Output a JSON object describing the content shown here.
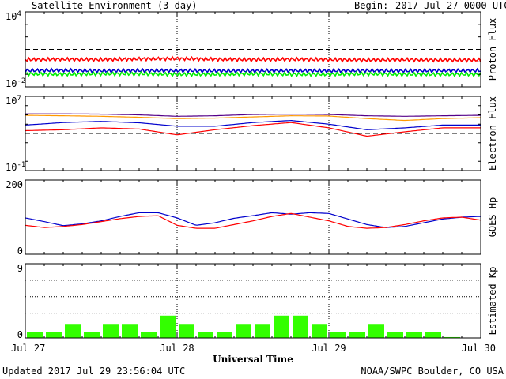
{
  "header": {
    "title": "Satellite Environment (3 day)",
    "begin_label": "Begin:",
    "begin_value": "2017 Jul 27 0000 UTC"
  },
  "footer": {
    "updated": "Updated 2017 Jul 29 23:56:04 UTC",
    "credit": "NOAA/SWPC Boulder, CO USA"
  },
  "colors": {
    "red": "#ff0000",
    "blue": "#0000cc",
    "green": "#00ee00",
    "orange": "#ff9900",
    "purple": "#550088",
    "bar": "#33ff00"
  },
  "chart_data": [
    {
      "type": "line",
      "ylabel": "Proton Flux",
      "yscale": "log",
      "ylim": [
        0.01,
        10000
      ],
      "yticks": [
        {
          "base": "10",
          "exp": "4"
        },
        {
          "base": "10",
          "exp": "-2"
        }
      ],
      "threshold": 10,
      "x": [
        0,
        6,
        12,
        18,
        24,
        30,
        36,
        42,
        48,
        54,
        60,
        66,
        72
      ],
      "series": [
        {
          "color": "#ff0000",
          "values": [
            1.5,
            1.6,
            1.5,
            1.7,
            1.8,
            1.6,
            1.5,
            1.6,
            1.5,
            1.4,
            1.5,
            1.4,
            1.4
          ]
        },
        {
          "color": "#0000cc",
          "values": [
            0.2,
            0.21,
            0.19,
            0.2,
            0.2,
            0.19,
            0.19,
            0.2,
            0.19,
            0.2,
            0.19,
            0.2,
            0.2
          ]
        },
        {
          "color": "#00ee00",
          "values": [
            0.11,
            0.1,
            0.11,
            0.11,
            0.1,
            0.1,
            0.11,
            0.1,
            0.1,
            0.11,
            0.1,
            0.1,
            0.1
          ]
        }
      ]
    },
    {
      "type": "line",
      "ylabel": "Electron Flux",
      "yscale": "log",
      "ylim": [
        0.1,
        10000000
      ],
      "yticks": [
        {
          "base": "10",
          "exp": "7"
        },
        {
          "base": "10",
          "exp": "-1"
        }
      ],
      "threshold": 1000,
      "x": [
        0,
        6,
        12,
        18,
        24,
        30,
        36,
        42,
        48,
        54,
        60,
        66,
        72
      ],
      "series": [
        {
          "color": "#ff9900",
          "values": [
            90000,
            80000,
            70000,
            55000,
            40000,
            45000,
            60000,
            80000,
            75000,
            40000,
            25000,
            40000,
            50000
          ]
        },
        {
          "color": "#550088",
          "values": [
            130000,
            130000,
            120000,
            100000,
            70000,
            80000,
            110000,
            120000,
            110000,
            80000,
            70000,
            80000,
            90000
          ]
        },
        {
          "color": "#0000cc",
          "values": [
            8000,
            15000,
            20000,
            14000,
            6000,
            6000,
            15000,
            25000,
            10000,
            2500,
            4000,
            8000,
            8000
          ]
        },
        {
          "color": "#ff0000",
          "values": [
            2000,
            2500,
            4000,
            3000,
            700,
            2500,
            7000,
            15000,
            4000,
            500,
            1500,
            4000,
            4000
          ]
        }
      ]
    },
    {
      "type": "line",
      "ylabel": "GOES Hp",
      "yscale": "linear",
      "ylim": [
        0,
        200
      ],
      "yticks": [
        {
          "base": "200",
          "exp": ""
        },
        {
          "base": "0",
          "exp": ""
        }
      ],
      "x": [
        0,
        3,
        6,
        9,
        12,
        15,
        18,
        21,
        24,
        27,
        30,
        33,
        36,
        39,
        42,
        45,
        48,
        51,
        54,
        57,
        60,
        63,
        66,
        69,
        72
      ],
      "series": [
        {
          "color": "#0000cc",
          "values": [
            98,
            88,
            77,
            82,
            90,
            102,
            112,
            112,
            98,
            78,
            85,
            97,
            104,
            112,
            108,
            112,
            110,
            95,
            80,
            72,
            75,
            85,
            95,
            100,
            102
          ]
        },
        {
          "color": "#ff0000",
          "values": [
            78,
            72,
            75,
            80,
            88,
            96,
            102,
            104,
            78,
            70,
            70,
            80,
            90,
            102,
            110,
            100,
            90,
            75,
            70,
            72,
            80,
            90,
            98,
            100,
            92
          ]
        }
      ]
    },
    {
      "type": "bar",
      "ylabel": "Estimated Kp",
      "ylim": [
        0,
        9
      ],
      "yticks": [
        {
          "base": "9",
          "exp": ""
        },
        {
          "base": "0",
          "exp": ""
        }
      ],
      "values": [
        0.7,
        0.7,
        1.7,
        0.7,
        1.7,
        1.7,
        0.7,
        2.7,
        1.7,
        0.7,
        0.7,
        1.7,
        1.7,
        2.7,
        2.7,
        1.7,
        0.7,
        0.7,
        1.7,
        0.7,
        0.7,
        0.7,
        0.1,
        0
      ],
      "xlabel": "Universal Time",
      "xticks": [
        "Jul 27",
        "Jul 28",
        "Jul 29",
        "Jul 30"
      ]
    }
  ]
}
